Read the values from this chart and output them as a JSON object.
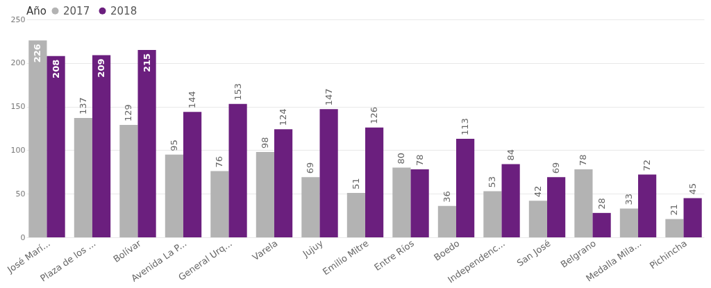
{
  "chart_data": {
    "type": "bar",
    "legend_title": "Año",
    "legend": "top left",
    "grid": "y",
    "data_labels": true,
    "categories": [
      "José Marí...",
      "Plaza de los ...",
      "Bolívar",
      "Avenida La P...",
      "General Urq...",
      "Varela",
      "Jujuy",
      "Emilio Mitre",
      "Entre Ríos",
      "Boedo",
      "Independenc...",
      "San José",
      "Belgrano",
      "Medalla Mila...",
      "Pichincha"
    ],
    "series": [
      {
        "name": "2017",
        "color": "#b3b3b3",
        "values": [
          226,
          137,
          129,
          95,
          76,
          98,
          69,
          51,
          80,
          36,
          53,
          42,
          78,
          33,
          21
        ]
      },
      {
        "name": "2018",
        "color": "#6b1f7e",
        "values": [
          208,
          209,
          215,
          144,
          153,
          124,
          147,
          126,
          78,
          113,
          84,
          69,
          28,
          72,
          45
        ]
      }
    ],
    "ylim": [
      0,
      250
    ],
    "yticks": [
      0,
      50,
      100,
      150,
      200,
      250
    ]
  }
}
